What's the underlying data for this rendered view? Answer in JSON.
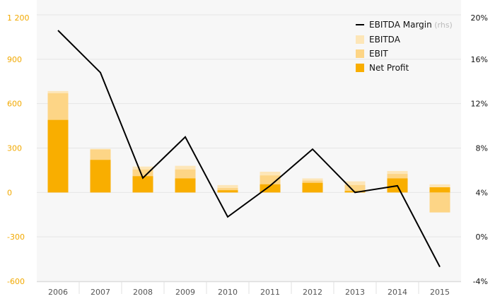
{
  "chart_data": {
    "type": "bar",
    "categories": [
      "2006",
      "2007",
      "2008",
      "2009",
      "2010",
      "2011",
      "2012",
      "2013",
      "2014",
      "2015"
    ],
    "series": [
      {
        "name": "EBITDA",
        "kind": "bar",
        "axis": "left",
        "color": "#fde6b8",
        "values": [
          685,
          295,
          175,
          180,
          50,
          140,
          95,
          75,
          145,
          55
        ]
      },
      {
        "name": "EBIT",
        "kind": "bar",
        "axis": "left",
        "color": "#fdd586",
        "values": [
          670,
          290,
          155,
          155,
          30,
          115,
          80,
          50,
          125,
          -135
        ]
      },
      {
        "name": "Net Profit",
        "kind": "bar",
        "axis": "left",
        "color": "#f9ae00",
        "values": [
          490,
          220,
          110,
          95,
          15,
          55,
          65,
          10,
          95,
          35
        ]
      },
      {
        "name": "EBITDA Margin",
        "name_note": "(rhs)",
        "kind": "line",
        "axis": "right",
        "color": "#000000",
        "values": [
          18.6,
          14.8,
          5.3,
          9.0,
          1.8,
          4.6,
          7.9,
          4.0,
          4.6,
          -2.7
        ]
      }
    ],
    "left_axis": {
      "ylim": [
        -600,
        1200
      ],
      "ticks": [
        1200,
        900,
        600,
        300,
        0,
        -300,
        -600
      ],
      "tick_labels": [
        "1 200",
        "900",
        "600",
        "300",
        "0",
        "-300",
        "-600"
      ]
    },
    "right_axis": {
      "ylim": [
        -4,
        20
      ],
      "ticks": [
        20,
        16,
        12,
        8,
        4,
        0,
        -4
      ],
      "tick_labels": [
        "20%",
        "16%",
        "12%",
        "8%",
        "4%",
        "0%",
        "-4%"
      ]
    },
    "legend": {
      "position": "top-right",
      "order": [
        "EBITDA Margin",
        "EBITDA",
        "EBIT",
        "Net Profit"
      ]
    },
    "grid": true,
    "colors": {
      "left_axis_text": "#f2a900",
      "plot_background": "#f7f7f7",
      "grid": "#e6e6e6"
    }
  }
}
